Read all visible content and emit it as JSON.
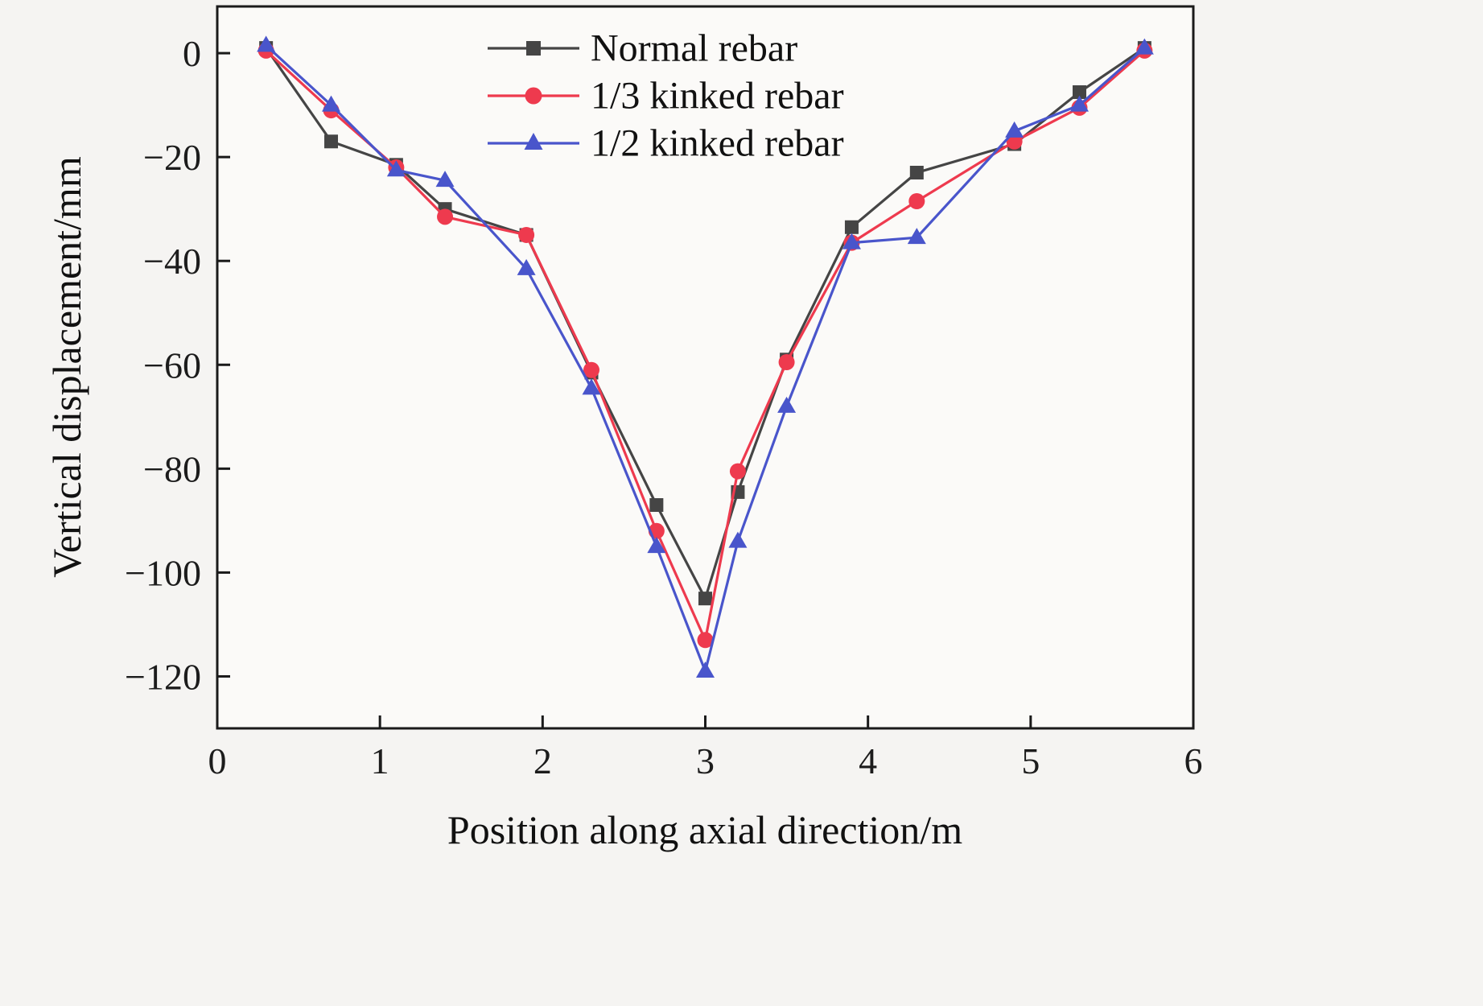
{
  "chart_data": {
    "type": "line",
    "title": "",
    "xlabel": "Position along axial direction/m",
    "ylabel": "Vertical displacement/mm",
    "xlim": [
      0,
      6
    ],
    "ylim": [
      -130,
      9
    ],
    "xticks": [
      0,
      1,
      2,
      3,
      4,
      5,
      6
    ],
    "xticklabels": [
      "0",
      "1",
      "2",
      "3",
      "4",
      "5",
      "6"
    ],
    "yticks": [
      0,
      -20,
      -40,
      -60,
      -80,
      -100,
      -120
    ],
    "yticklabels": [
      "0",
      "−20",
      "−40",
      "−60",
      "−80",
      "−100",
      "−120"
    ],
    "grid": false,
    "legend_position": "top-center-inside",
    "x": [
      0.3,
      0.7,
      1.1,
      1.4,
      1.9,
      2.3,
      2.7,
      3.0,
      3.2,
      3.5,
      3.9,
      4.3,
      4.9,
      5.3,
      5.7
    ],
    "series": [
      {
        "name": "Normal rebar",
        "marker": "square",
        "color": "#454545",
        "values": [
          1,
          -17,
          -21.5,
          -30,
          -35,
          -61.5,
          -87,
          -105,
          -84.5,
          -59,
          -33.5,
          -23,
          -17.5,
          -7.5,
          1
        ]
      },
      {
        "name": "1/3 kinked rebar",
        "marker": "circle",
        "color": "#ee3a4e",
        "values": [
          0.5,
          -11,
          -22,
          -31.5,
          -35,
          -61,
          -92,
          -113,
          -80.5,
          -59.5,
          -36.5,
          -28.5,
          -17,
          -10.5,
          0.5
        ]
      },
      {
        "name": "1/2 kinked rebar",
        "marker": "triangle",
        "color": "#4955cb",
        "values": [
          1.5,
          -10,
          -22.5,
          -24.5,
          -41.5,
          -64.5,
          -95,
          -119,
          -94,
          -68,
          -36.5,
          -35.5,
          -15,
          -10,
          1
        ]
      }
    ]
  }
}
